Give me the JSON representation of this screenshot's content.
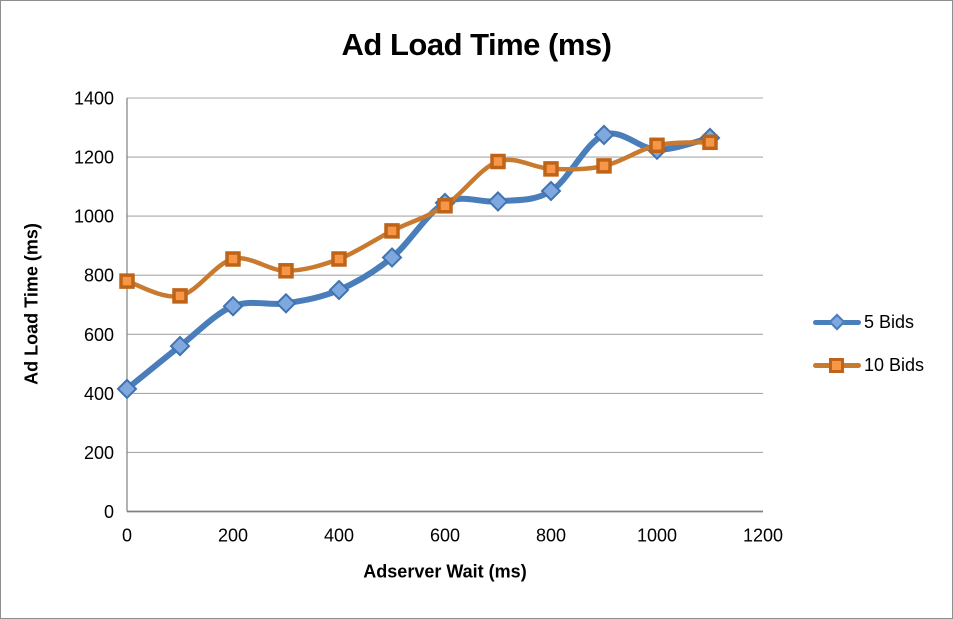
{
  "frame": {
    "background": "#FFFFFF",
    "border_color": "#8E8E8E"
  },
  "chart_data": {
    "type": "line",
    "title": "Ad Load Time (ms)",
    "xlabel": "Adserver Wait (ms)",
    "ylabel": "Ad Load Time (ms)",
    "x": [
      0,
      100,
      200,
      300,
      400,
      500,
      600,
      700,
      800,
      900,
      1000,
      1100
    ],
    "series": [
      {
        "name": "5 Bids",
        "line_color": "#4A7EBB",
        "line_width": 6,
        "marker": "diamond",
        "marker_fill": "#7FA8DE",
        "marker_stroke": "#4173B0",
        "values": [
          415,
          560,
          695,
          705,
          750,
          860,
          1045,
          1050,
          1085,
          1275,
          1225,
          1265
        ]
      },
      {
        "name": "10 Bids",
        "line_color": "#C87A2E",
        "line_width": 4.5,
        "marker": "square",
        "marker_fill": "#F79646",
        "marker_stroke": "#BE6317",
        "values": [
          780,
          730,
          855,
          815,
          855,
          950,
          1035,
          1185,
          1160,
          1170,
          1240,
          1250
        ]
      }
    ],
    "xlim": [
      0,
      1200
    ],
    "ylim": [
      0,
      1400
    ],
    "x_ticks": [
      0,
      200,
      400,
      600,
      800,
      1000,
      1200
    ],
    "y_ticks": [
      0,
      200,
      400,
      600,
      800,
      1000,
      1200,
      1400
    ],
    "grid": true,
    "smooth": true,
    "legend_position": "right",
    "gridline_color": "#A8A8A8",
    "axis_color": "#7F7F7F",
    "text_color": "#000000"
  }
}
